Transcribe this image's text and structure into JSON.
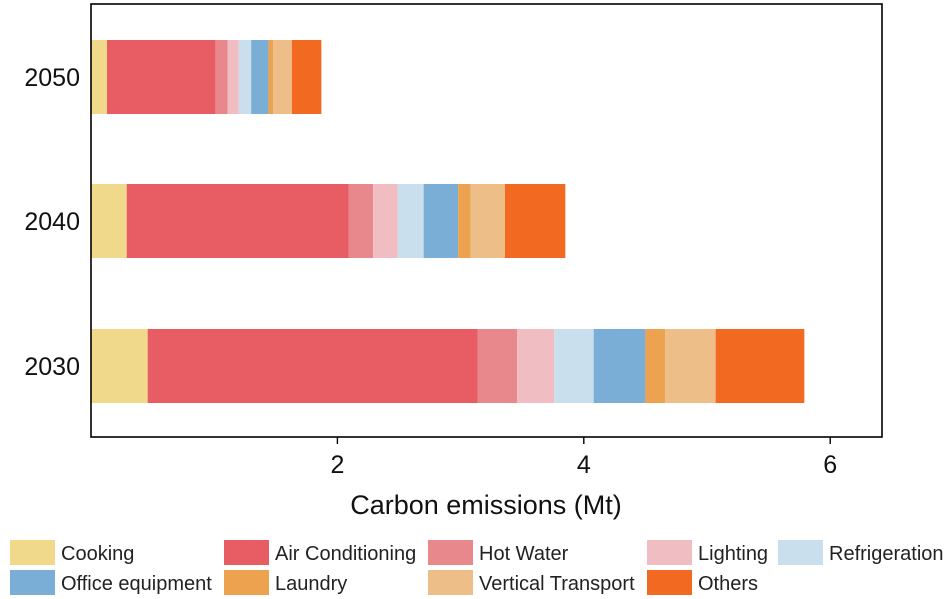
{
  "chart_data": {
    "type": "bar",
    "orientation": "horizontal",
    "stacked": true,
    "title": "",
    "xlabel": "Carbon emissions (Mt)",
    "ylabel": "",
    "xlim": [
      0,
      6.4
    ],
    "xticks": [
      2,
      4,
      6
    ],
    "grid": false,
    "categories": [
      "2050",
      "2040",
      "2030"
    ],
    "series": [
      {
        "name": "Cooking",
        "color": "#F0D98A",
        "values": [
          0.13,
          0.29,
          0.46
        ]
      },
      {
        "name": "Air Conditioning",
        "color": "#E85C63",
        "values": [
          0.88,
          1.8,
          2.68
        ]
      },
      {
        "name": "Hot Water",
        "color": "#E9888C",
        "values": [
          0.1,
          0.2,
          0.32
        ]
      },
      {
        "name": "Lighting",
        "color": "#F0BEC2",
        "values": [
          0.09,
          0.2,
          0.3
        ]
      },
      {
        "name": "Refrigeration",
        "color": "#C9DFEE",
        "values": [
          0.1,
          0.21,
          0.32
        ]
      },
      {
        "name": "Office equipment",
        "color": "#7AAED6",
        "values": [
          0.14,
          0.28,
          0.42
        ]
      },
      {
        "name": "Laundry",
        "color": "#EDA24F",
        "values": [
          0.04,
          0.1,
          0.16
        ]
      },
      {
        "name": "Vertical Transport",
        "color": "#EEBE88",
        "values": [
          0.15,
          0.28,
          0.41
        ]
      },
      {
        "name": "Others",
        "color": "#F26A21",
        "values": [
          0.24,
          0.49,
          0.72
        ]
      }
    ],
    "legend": "bottom"
  }
}
